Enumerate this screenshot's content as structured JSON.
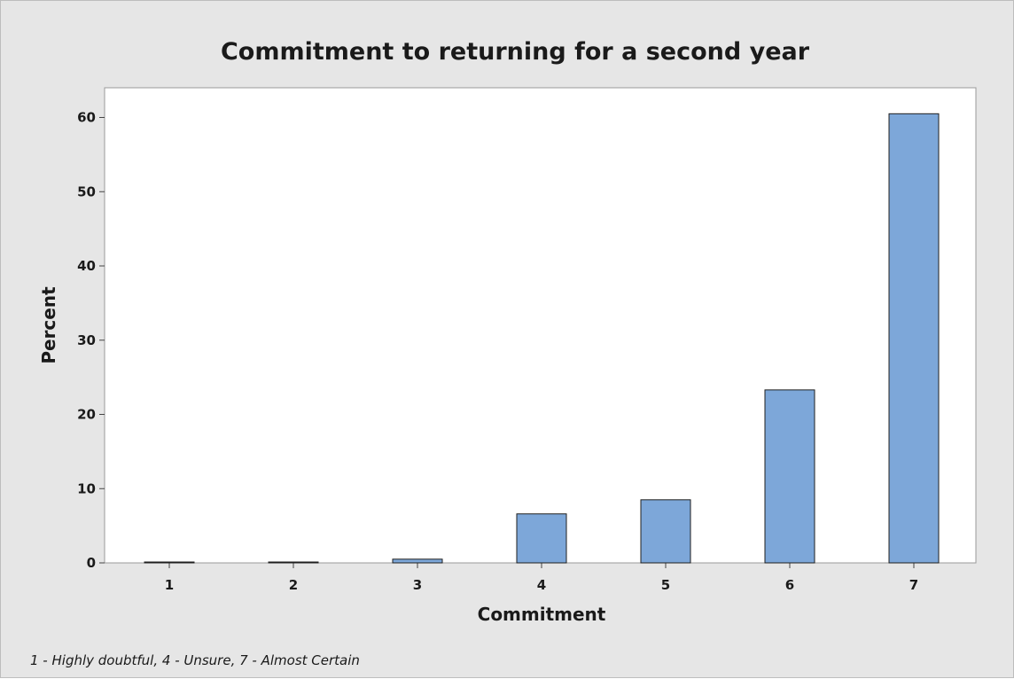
{
  "chart_data": {
    "type": "bar",
    "title": "Commitment to returning for a second year",
    "xlabel": "Commitment",
    "ylabel": "Percent",
    "categories": [
      "1",
      "2",
      "3",
      "4",
      "5",
      "6",
      "7"
    ],
    "values": [
      0.1,
      0.1,
      0.5,
      6.6,
      8.5,
      23.3,
      60.5
    ],
    "ylim": [
      0,
      64
    ],
    "yticks": [
      0,
      10,
      20,
      30,
      40,
      50,
      60
    ],
    "grid": false,
    "bar_color": "#7da7d9",
    "bar_edge_color": "#1f1f1f",
    "footnote": "1 - Highly doubtful, 4 - Unsure, 7 - Almost Certain"
  },
  "colors": {
    "background": "#e6e6e6",
    "plot_area": "#ffffff",
    "frame": "#bdbdbd"
  }
}
